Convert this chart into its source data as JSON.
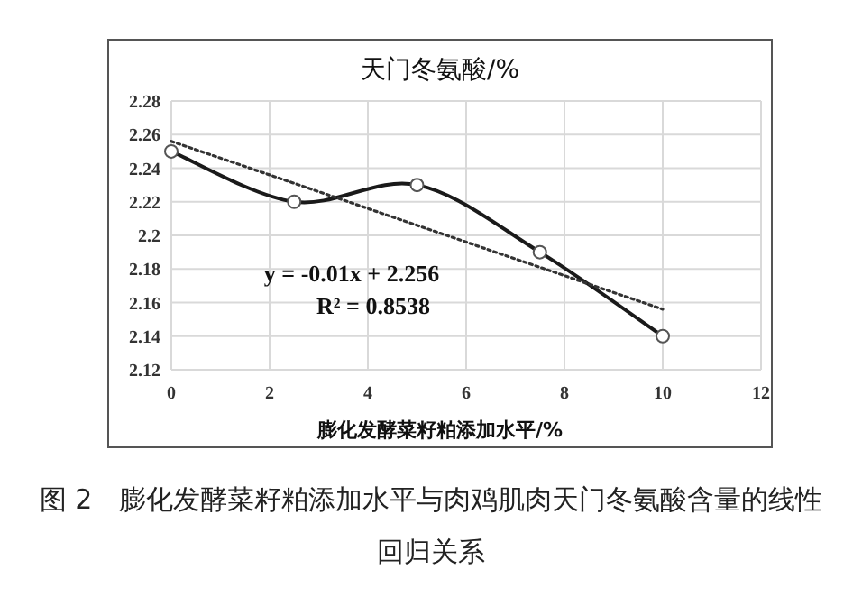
{
  "chart_data": {
    "type": "line",
    "title": "天门冬氨酸/%",
    "xlabel": "膨化发酵菜籽粕添加水平/%",
    "x": [
      0,
      2.5,
      5,
      7.5,
      10
    ],
    "series": [
      {
        "color": "#1a1a1a",
        "values": [
          2.25,
          2.22,
          2.23,
          2.19,
          2.14
        ],
        "marker": "circle",
        "line_style": "solid"
      },
      {
        "type": "line",
        "x": [
          0,
          10
        ],
        "values": [
          2.256,
          2.156
        ],
        "color": "#333333",
        "marker": "none",
        "line_style": "dotted"
      }
    ],
    "xlim": [
      0,
      12
    ],
    "xticks": [
      0,
      2,
      4,
      6,
      8,
      10,
      12
    ],
    "ylim": [
      2.12,
      2.28
    ],
    "yticks": [
      2.12,
      2.14,
      2.16,
      2.18,
      2.2,
      2.22,
      2.24,
      2.26,
      2.28
    ],
    "grid": true,
    "annotations": [
      "y = -0.01x + 2.256",
      "R² = 0.8538",
      "图 2　膨化发酵菜籽粕添加水平与肉鸡肌肉天门冬氨酸含量的线性回归关系"
    ]
  }
}
